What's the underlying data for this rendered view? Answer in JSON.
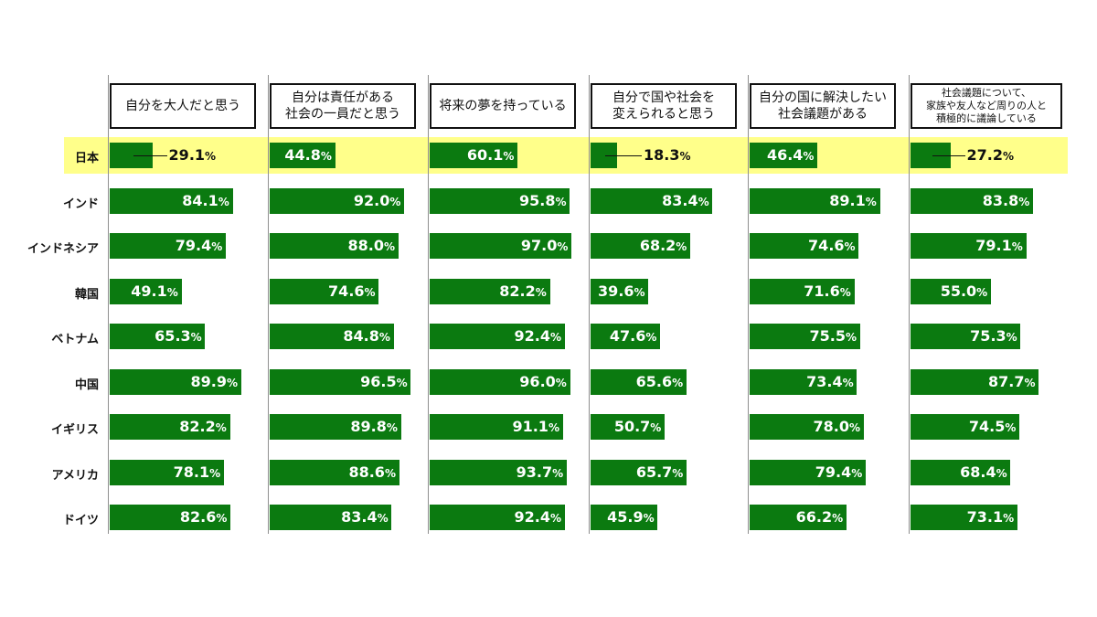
{
  "chart_data": {
    "type": "bar",
    "orientation": "horizontal",
    "xlim": [
      0,
      100
    ],
    "unit": "%",
    "highlight_row": "日本",
    "colors": {
      "bar": "#0b7a10",
      "highlight": "#ffff8a"
    },
    "categories": [
      "日本",
      "インド",
      "インドネシア",
      "韓国",
      "ベトナム",
      "中国",
      "イギリス",
      "アメリカ",
      "ドイツ"
    ],
    "series": [
      {
        "name": "自分を大人だと思う",
        "values": [
          29.1,
          84.1,
          79.4,
          49.1,
          65.3,
          89.9,
          82.2,
          78.1,
          82.6
        ]
      },
      {
        "name": "自分は責任がある\n社会の一員だと思う",
        "values": [
          44.8,
          92.0,
          88.0,
          74.6,
          84.8,
          96.5,
          89.8,
          88.6,
          83.4
        ]
      },
      {
        "name": "将来の夢を持っている",
        "values": [
          60.1,
          95.8,
          97.0,
          82.2,
          92.4,
          96.0,
          91.1,
          93.7,
          92.4
        ]
      },
      {
        "name": "自分で国や社会を\n変えられると思う",
        "values": [
          18.3,
          83.4,
          68.2,
          39.6,
          47.6,
          65.6,
          50.7,
          65.7,
          45.9
        ]
      },
      {
        "name": "自分の国に解決したい\n社会議題がある",
        "values": [
          46.4,
          89.1,
          74.6,
          71.6,
          75.5,
          73.4,
          78.0,
          79.4,
          66.2
        ]
      },
      {
        "name": "社会議題について、\n家族や友人など周りの人と\n積極的に議論している",
        "values": [
          27.2,
          83.8,
          79.1,
          55.0,
          75.3,
          87.7,
          74.5,
          68.4,
          73.1
        ]
      }
    ],
    "labels": [
      [
        "29.1",
        "84.1",
        "79.4",
        "49.1",
        "65.3",
        "89.9",
        "82.2",
        "78.1",
        "82.6"
      ],
      [
        "44.8",
        "92.0",
        "88.0",
        "74.6",
        "84.8",
        "96.5",
        "89.8",
        "88.6",
        "83.4"
      ],
      [
        "60.1",
        "95.8",
        "97.0",
        "82.2",
        "92.4",
        "96.0",
        "91.1",
        "93.7",
        "92.4"
      ],
      [
        "18.3",
        "83.4",
        "68.2",
        "39.6",
        "47.6",
        "65.6",
        "50.7",
        "65.7",
        "45.9"
      ],
      [
        "46.4",
        "89.1",
        "74.6",
        "71.6",
        "75.5",
        "73.4",
        "78.0",
        "79.4",
        "66.2"
      ],
      [
        "27.2",
        "83.8",
        "79.1",
        "55.0",
        "75.3",
        "87.7",
        "74.5",
        "68.4",
        "73.1"
      ]
    ]
  }
}
